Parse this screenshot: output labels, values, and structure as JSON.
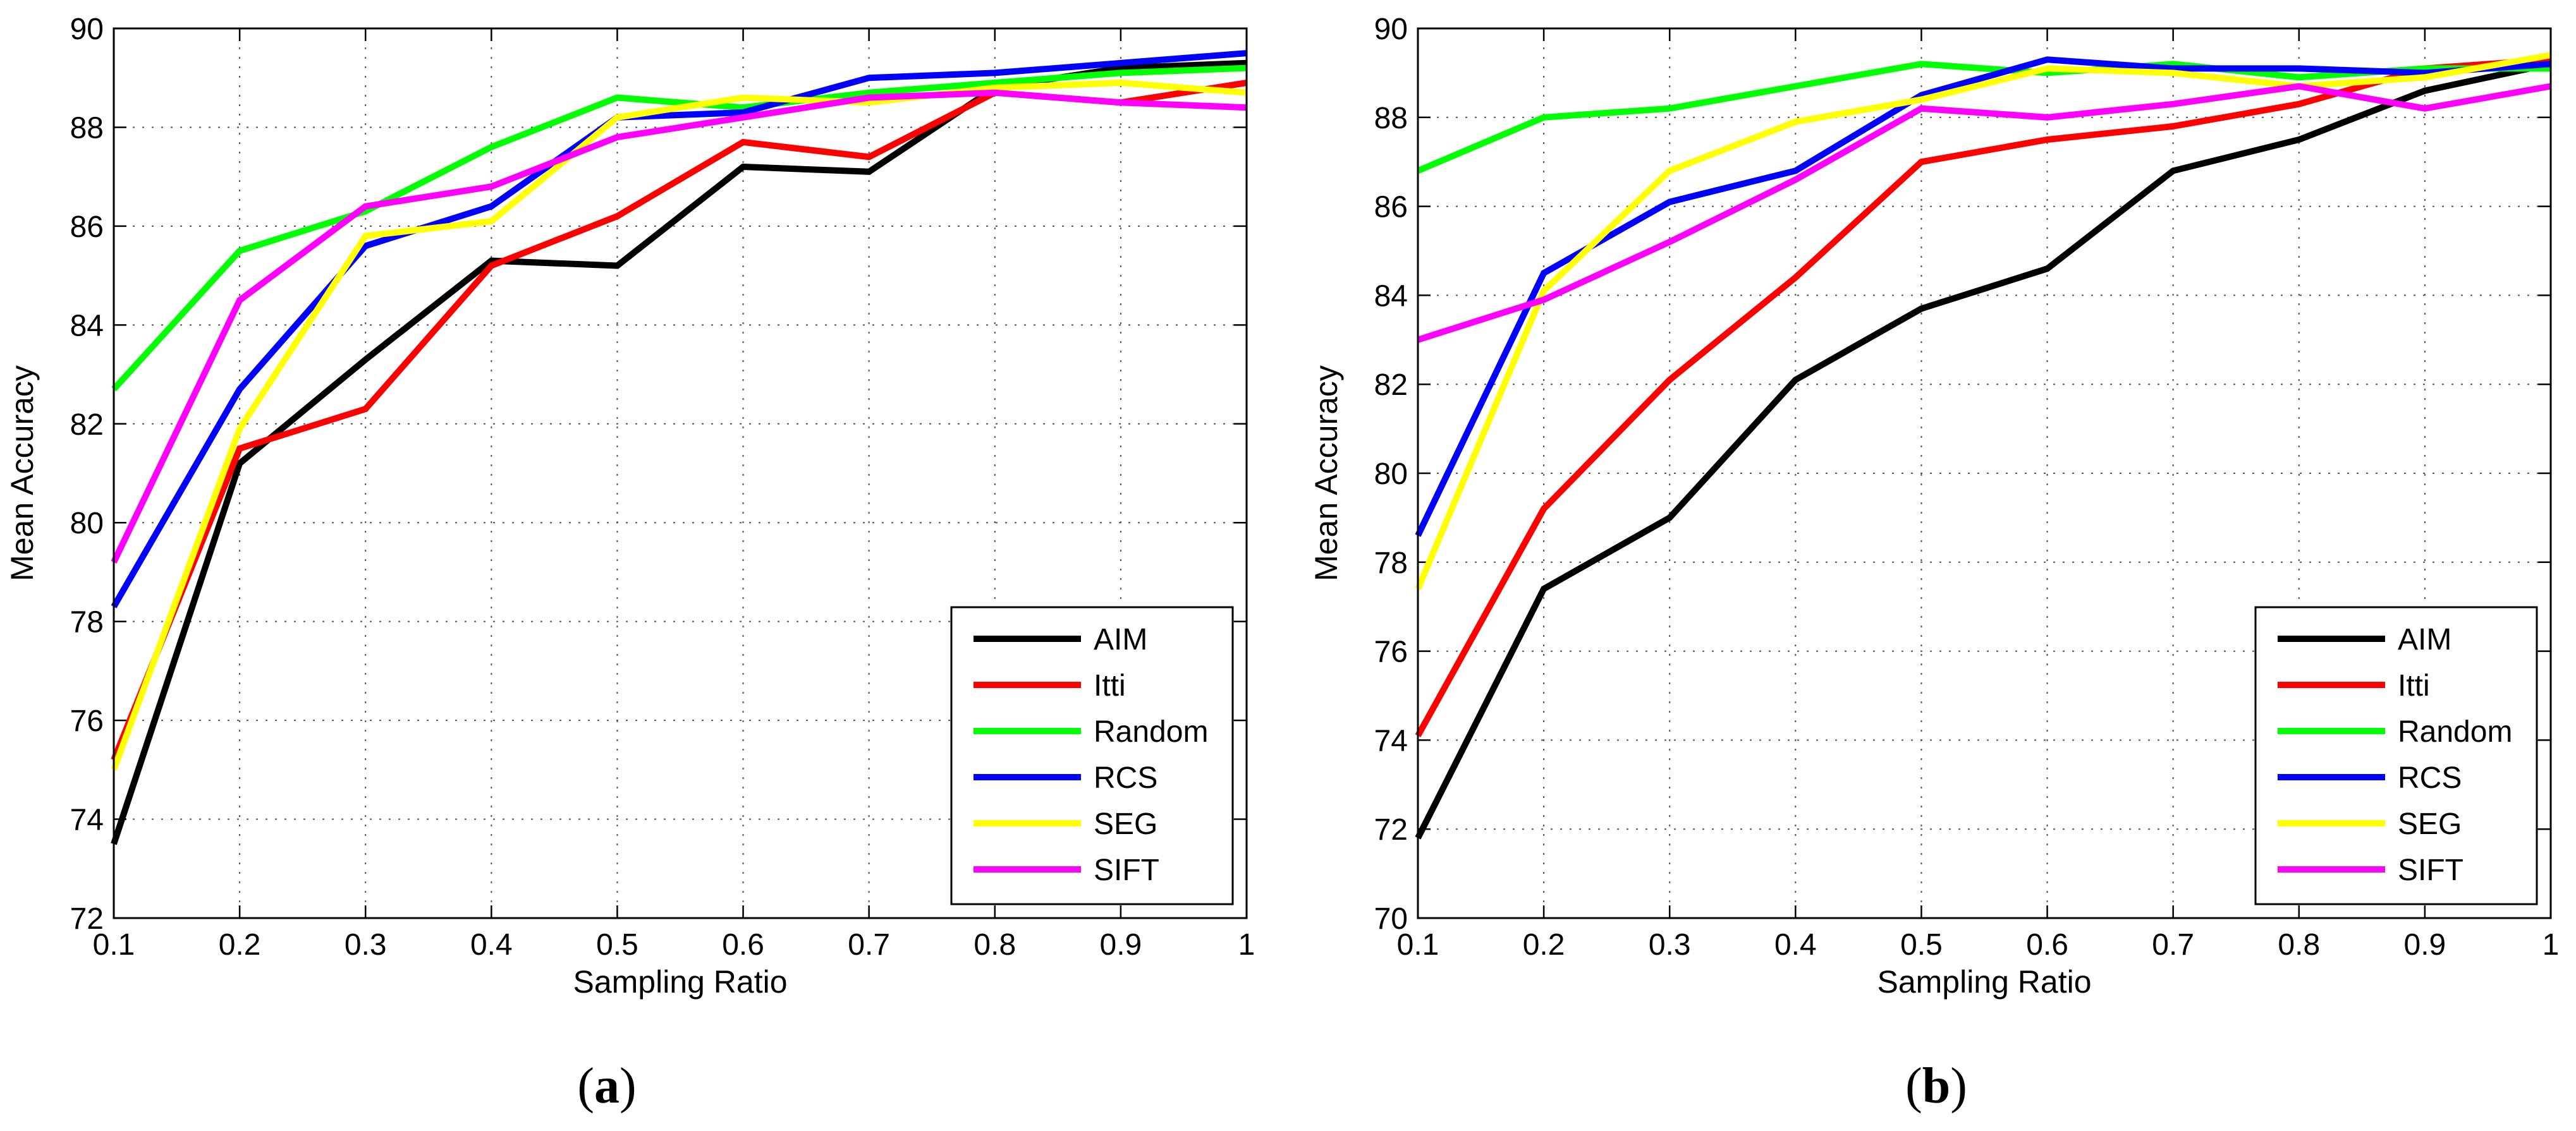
{
  "chart_data": [
    {
      "type": "line",
      "panel_label": "(a)",
      "panel_label_parts": {
        "open": "(",
        "letter": "a",
        "close": ")"
      },
      "xlabel": "Sampling Ratio",
      "ylabel": "Mean Accuracy",
      "xlim": [
        0.1,
        1
      ],
      "ylim": [
        72,
        90
      ],
      "xticks": [
        "0.1",
        "0.2",
        "0.3",
        "0.4",
        "0.5",
        "0.6",
        "0.7",
        "0.8",
        "0.9",
        "1"
      ],
      "yticks": [
        "72",
        "74",
        "76",
        "78",
        "80",
        "82",
        "84",
        "86",
        "88",
        "90"
      ],
      "grid": true,
      "legend_position": "bottom-right",
      "x": [
        0.1,
        0.2,
        0.3,
        0.4,
        0.5,
        0.6,
        0.7,
        0.8,
        0.9,
        1.0
      ],
      "series": [
        {
          "name": "AIM",
          "color": "#000000",
          "values": [
            73.5,
            81.2,
            83.3,
            85.3,
            85.2,
            87.2,
            87.1,
            88.8,
            89.2,
            89.3
          ]
        },
        {
          "name": "Itti",
          "color": "#ff0000",
          "values": [
            75.2,
            81.5,
            82.3,
            85.2,
            86.2,
            87.7,
            87.4,
            88.7,
            88.5,
            88.9
          ]
        },
        {
          "name": "Random",
          "color": "#00ff00",
          "values": [
            82.7,
            85.5,
            86.3,
            87.6,
            88.6,
            88.4,
            88.7,
            88.9,
            89.1,
            89.2
          ]
        },
        {
          "name": "RCS",
          "color": "#0000ff",
          "values": [
            78.3,
            82.7,
            85.6,
            86.4,
            88.2,
            88.3,
            89.0,
            89.1,
            89.3,
            89.5
          ]
        },
        {
          "name": "SEG",
          "color": "#ffff00",
          "values": [
            75.0,
            81.9,
            85.8,
            86.1,
            88.2,
            88.6,
            88.5,
            88.8,
            88.9,
            88.7
          ]
        },
        {
          "name": "SIFT",
          "color": "#ff00ff",
          "values": [
            79.2,
            84.5,
            86.4,
            86.8,
            87.8,
            88.2,
            88.6,
            88.7,
            88.5,
            88.4
          ]
        }
      ]
    },
    {
      "type": "line",
      "panel_label": "(b)",
      "panel_label_parts": {
        "open": "(",
        "letter": "b",
        "close": ")"
      },
      "xlabel": "Sampling Ratio",
      "ylabel": "Mean Accuracy",
      "xlim": [
        0.1,
        1
      ],
      "ylim": [
        70,
        90
      ],
      "xticks": [
        "0.1",
        "0.2",
        "0.3",
        "0.4",
        "0.5",
        "0.6",
        "0.7",
        "0.8",
        "0.9",
        "1"
      ],
      "yticks": [
        "70",
        "72",
        "74",
        "76",
        "78",
        "80",
        "82",
        "84",
        "86",
        "88",
        "90"
      ],
      "grid": true,
      "legend_position": "bottom-right",
      "x": [
        0.1,
        0.2,
        0.3,
        0.4,
        0.5,
        0.6,
        0.7,
        0.8,
        0.9,
        1.0
      ],
      "series": [
        {
          "name": "AIM",
          "color": "#000000",
          "values": [
            71.8,
            77.4,
            79.0,
            82.1,
            83.7,
            84.6,
            86.8,
            87.5,
            88.6,
            89.2
          ]
        },
        {
          "name": "Itti",
          "color": "#ff0000",
          "values": [
            74.1,
            79.2,
            82.1,
            84.4,
            87.0,
            87.5,
            87.8,
            88.3,
            89.1,
            89.3
          ]
        },
        {
          "name": "Random",
          "color": "#00ff00",
          "values": [
            86.8,
            88.0,
            88.2,
            88.7,
            89.2,
            89.0,
            89.2,
            88.9,
            89.1,
            89.1
          ]
        },
        {
          "name": "RCS",
          "color": "#0000ff",
          "values": [
            78.6,
            84.5,
            86.1,
            86.8,
            88.5,
            89.3,
            89.1,
            89.1,
            89.0,
            89.2
          ]
        },
        {
          "name": "SEG",
          "color": "#ffff00",
          "values": [
            77.4,
            84.1,
            86.8,
            87.9,
            88.4,
            89.1,
            89.0,
            88.7,
            88.9,
            89.4
          ]
        },
        {
          "name": "SIFT",
          "color": "#ff00ff",
          "values": [
            83.0,
            83.9,
            85.2,
            86.6,
            88.2,
            88.0,
            88.3,
            88.7,
            88.2,
            88.7
          ]
        }
      ]
    }
  ]
}
